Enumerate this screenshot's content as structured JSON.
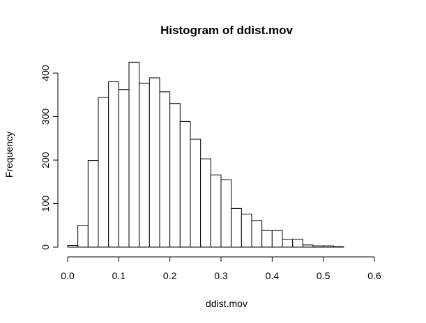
{
  "chart_data": {
    "type": "bar",
    "title": "Histogram of ddist.mov",
    "xlabel": "ddist.mov",
    "ylabel": "Frequency",
    "bin_width": 0.02,
    "x_ticks": [
      0.0,
      0.1,
      0.2,
      0.3,
      0.4,
      0.5,
      0.6
    ],
    "x_tick_labels": [
      "0.0",
      "0.1",
      "0.2",
      "0.3",
      "0.4",
      "0.5",
      "0.6"
    ],
    "y_ticks": [
      0,
      100,
      200,
      300,
      400
    ],
    "y_tick_labels": [
      "0",
      "100",
      "200",
      "300",
      "400"
    ],
    "xlim": [
      0.0,
      0.62
    ],
    "ylim": [
      0,
      425
    ],
    "grid": false,
    "bins": [
      {
        "start": 0.0,
        "end": 0.02,
        "count": 4
      },
      {
        "start": 0.02,
        "end": 0.04,
        "count": 50
      },
      {
        "start": 0.04,
        "end": 0.06,
        "count": 199
      },
      {
        "start": 0.06,
        "end": 0.08,
        "count": 344
      },
      {
        "start": 0.08,
        "end": 0.1,
        "count": 380
      },
      {
        "start": 0.1,
        "end": 0.12,
        "count": 362
      },
      {
        "start": 0.12,
        "end": 0.14,
        "count": 425
      },
      {
        "start": 0.14,
        "end": 0.16,
        "count": 377
      },
      {
        "start": 0.16,
        "end": 0.18,
        "count": 389
      },
      {
        "start": 0.18,
        "end": 0.2,
        "count": 357
      },
      {
        "start": 0.2,
        "end": 0.22,
        "count": 330
      },
      {
        "start": 0.22,
        "end": 0.24,
        "count": 289
      },
      {
        "start": 0.24,
        "end": 0.26,
        "count": 248
      },
      {
        "start": 0.26,
        "end": 0.28,
        "count": 203
      },
      {
        "start": 0.28,
        "end": 0.3,
        "count": 166
      },
      {
        "start": 0.3,
        "end": 0.32,
        "count": 155
      },
      {
        "start": 0.32,
        "end": 0.34,
        "count": 89
      },
      {
        "start": 0.34,
        "end": 0.36,
        "count": 76
      },
      {
        "start": 0.36,
        "end": 0.38,
        "count": 61
      },
      {
        "start": 0.38,
        "end": 0.4,
        "count": 38
      },
      {
        "start": 0.4,
        "end": 0.42,
        "count": 38
      },
      {
        "start": 0.42,
        "end": 0.44,
        "count": 18
      },
      {
        "start": 0.44,
        "end": 0.46,
        "count": 18
      },
      {
        "start": 0.46,
        "end": 0.48,
        "count": 5
      },
      {
        "start": 0.48,
        "end": 0.5,
        "count": 3
      },
      {
        "start": 0.5,
        "end": 0.52,
        "count": 3
      },
      {
        "start": 0.52,
        "end": 0.54,
        "count": 1
      },
      {
        "start": 0.54,
        "end": 0.56,
        "count": 0
      },
      {
        "start": 0.56,
        "end": 0.58,
        "count": 0
      },
      {
        "start": 0.58,
        "end": 0.6,
        "count": 0
      },
      {
        "start": 0.6,
        "end": 0.62,
        "count": 0
      }
    ]
  }
}
